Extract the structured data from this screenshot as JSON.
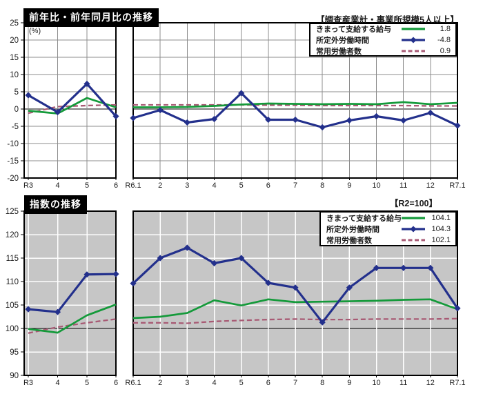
{
  "colors": {
    "salary": "#149a3a",
    "overtime": "#23308c",
    "workers": "#a85a74",
    "plot_bg": "#c6c6c6",
    "grid_top": "#8c8c8c",
    "grid_bottom": "#ffffff",
    "frame": "#000000",
    "axis_text": "#1a1a1a",
    "title_bg": "#000000",
    "title_fg": "#ffffff"
  },
  "chart_data": [
    {
      "id": "yoy",
      "type": "line",
      "title": "前年比・前年同月比の推移",
      "unit_label": "(%)",
      "legend_header": "【調査産業計・事業所規模5人以上】",
      "legend_position": "top-right",
      "grid": "on",
      "ylim": [
        -20,
        25
      ],
      "y_ticks": [
        25,
        20,
        15,
        10,
        5,
        0,
        -5,
        -10,
        -15,
        -20
      ],
      "baseline": 0,
      "series_meta": [
        {
          "key": "salary",
          "label": "きまって支給する給与",
          "style": "solid",
          "latest": "1.8"
        },
        {
          "key": "overtime",
          "label": "所定外労働時間",
          "style": "diamond",
          "latest": "-4.8"
        },
        {
          "key": "workers",
          "label": "常用労働者数",
          "style": "dashed",
          "latest": "0.9"
        }
      ],
      "panels": [
        {
          "categories": [
            "R3",
            "4",
            "5",
            "6"
          ],
          "series": {
            "salary": [
              -0.5,
              -1.3,
              3.2,
              0.5
            ],
            "overtime": [
              4.0,
              -0.9,
              7.3,
              -2.1
            ],
            "workers": [
              -1.2,
              0.7,
              1.0,
              1.2
            ]
          }
        },
        {
          "categories": [
            "R6.1",
            "2",
            "3",
            "4",
            "5",
            "6",
            "7",
            "8",
            "9",
            "10",
            "11",
            "12",
            "R7.1"
          ],
          "series": {
            "salary": [
              0.5,
              0.5,
              0.6,
              0.9,
              1.3,
              1.6,
              1.5,
              1.4,
              1.5,
              1.4,
              2.0,
              1.4,
              1.8
            ],
            "overtime": [
              -2.6,
              -0.3,
              -3.9,
              -2.9,
              4.6,
              -3.1,
              -3.1,
              -5.3,
              -3.3,
              -2.1,
              -3.3,
              -1.1,
              -4.8
            ],
            "workers": [
              1.2,
              1.2,
              1.2,
              1.2,
              1.2,
              1.1,
              1.1,
              1.0,
              1.0,
              1.0,
              1.0,
              0.9,
              0.9
            ]
          }
        }
      ]
    },
    {
      "id": "index",
      "type": "line",
      "title": "指数の推移",
      "legend_header": "【R2=100】",
      "legend_position": "top-right",
      "grid": "on",
      "ylim": [
        90,
        125
      ],
      "y_ticks": [
        125,
        120,
        115,
        110,
        105,
        100,
        95,
        90
      ],
      "baseline": 100,
      "series_meta": [
        {
          "key": "salary",
          "label": "きまって支給する給与",
          "style": "solid",
          "latest": "104.1"
        },
        {
          "key": "overtime",
          "label": "所定外労働時間",
          "style": "diamond",
          "latest": "104.3"
        },
        {
          "key": "workers",
          "label": "常用労働者数",
          "style": "dashed",
          "latest": "102.1"
        }
      ],
      "panels": [
        {
          "categories": [
            "R3",
            "4",
            "5",
            "6"
          ],
          "series": {
            "salary": [
              99.9,
              99.1,
              102.8,
              105.1
            ],
            "overtime": [
              104.1,
              103.5,
              111.5,
              111.6
            ],
            "workers": [
              99.0,
              100.3,
              101.2,
              102.0
            ]
          }
        },
        {
          "categories": [
            "R6.1",
            "2",
            "3",
            "4",
            "5",
            "6",
            "7",
            "8",
            "9",
            "10",
            "11",
            "12",
            "R7.1"
          ],
          "series": {
            "salary": [
              102.2,
              102.5,
              103.3,
              106.0,
              104.9,
              106.2,
              105.6,
              105.7,
              105.8,
              105.9,
              106.1,
              106.2,
              104.1
            ],
            "overtime": [
              109.6,
              115.0,
              117.2,
              113.9,
              115.0,
              109.7,
              108.7,
              101.3,
              108.7,
              112.9,
              112.9,
              112.9,
              104.3
            ],
            "workers": [
              101.2,
              101.2,
              101.1,
              101.5,
              101.7,
              101.9,
              102.0,
              101.9,
              101.9,
              102.0,
              102.0,
              102.0,
              102.1
            ]
          }
        }
      ]
    }
  ]
}
